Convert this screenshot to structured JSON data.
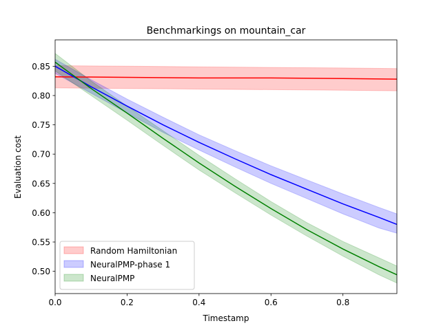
{
  "chart_data": {
    "type": "line",
    "title": "Benchmarkings on mountain_car",
    "xlabel": "Timestamp",
    "ylabel": "Evaluation cost",
    "xlim": [
      0,
      0.95
    ],
    "ylim": [
      0.462,
      0.895
    ],
    "xticks": [
      0.0,
      0.2,
      0.4,
      0.6,
      0.8
    ],
    "xtick_labels": [
      "0.0",
      "0.2",
      "0.4",
      "0.6",
      "0.8"
    ],
    "yticks": [
      0.5,
      0.55,
      0.6,
      0.65,
      0.7,
      0.75,
      0.8,
      0.85
    ],
    "ytick_labels": [
      "0.50",
      "0.55",
      "0.60",
      "0.65",
      "0.70",
      "0.75",
      "0.80",
      "0.85"
    ],
    "grid": false,
    "legend_position": "lower-left",
    "series": [
      {
        "name": "Random Hamiltonian",
        "color": "#ff0000",
        "band_color": "#ff0000",
        "x": [
          0.0,
          0.2,
          0.4,
          0.6,
          0.8,
          0.95
        ],
        "mean": [
          0.832,
          0.831,
          0.83,
          0.83,
          0.829,
          0.828
        ],
        "lower": [
          0.813,
          0.812,
          0.811,
          0.81,
          0.809,
          0.808
        ],
        "upper": [
          0.851,
          0.85,
          0.849,
          0.848,
          0.847,
          0.846
        ]
      },
      {
        "name": "NeuralPMP-phase 1",
        "color": "#0000ff",
        "band_color": "#0000ff",
        "x": [
          0.0,
          0.1,
          0.2,
          0.3,
          0.4,
          0.5,
          0.6,
          0.7,
          0.8,
          0.9,
          0.95
        ],
        "mean": [
          0.85,
          0.815,
          0.782,
          0.75,
          0.72,
          0.692,
          0.665,
          0.64,
          0.615,
          0.592,
          0.58
        ],
        "lower": [
          0.838,
          0.804,
          0.77,
          0.737,
          0.707,
          0.678,
          0.65,
          0.624,
          0.598,
          0.574,
          0.565
        ],
        "upper": [
          0.862,
          0.827,
          0.794,
          0.763,
          0.733,
          0.706,
          0.68,
          0.656,
          0.632,
          0.609,
          0.598
        ]
      },
      {
        "name": "NeuralPMP",
        "color": "#008000",
        "band_color": "#008000",
        "x": [
          0.0,
          0.1,
          0.2,
          0.3,
          0.4,
          0.5,
          0.6,
          0.7,
          0.8,
          0.9,
          0.95
        ],
        "mean": [
          0.857,
          0.812,
          0.77,
          0.727,
          0.685,
          0.645,
          0.607,
          0.571,
          0.538,
          0.508,
          0.494
        ],
        "lower": [
          0.842,
          0.8,
          0.758,
          0.715,
          0.673,
          0.634,
          0.596,
          0.56,
          0.526,
          0.494,
          0.48
        ],
        "upper": [
          0.872,
          0.825,
          0.782,
          0.74,
          0.698,
          0.658,
          0.619,
          0.583,
          0.551,
          0.523,
          0.509
        ]
      }
    ]
  }
}
